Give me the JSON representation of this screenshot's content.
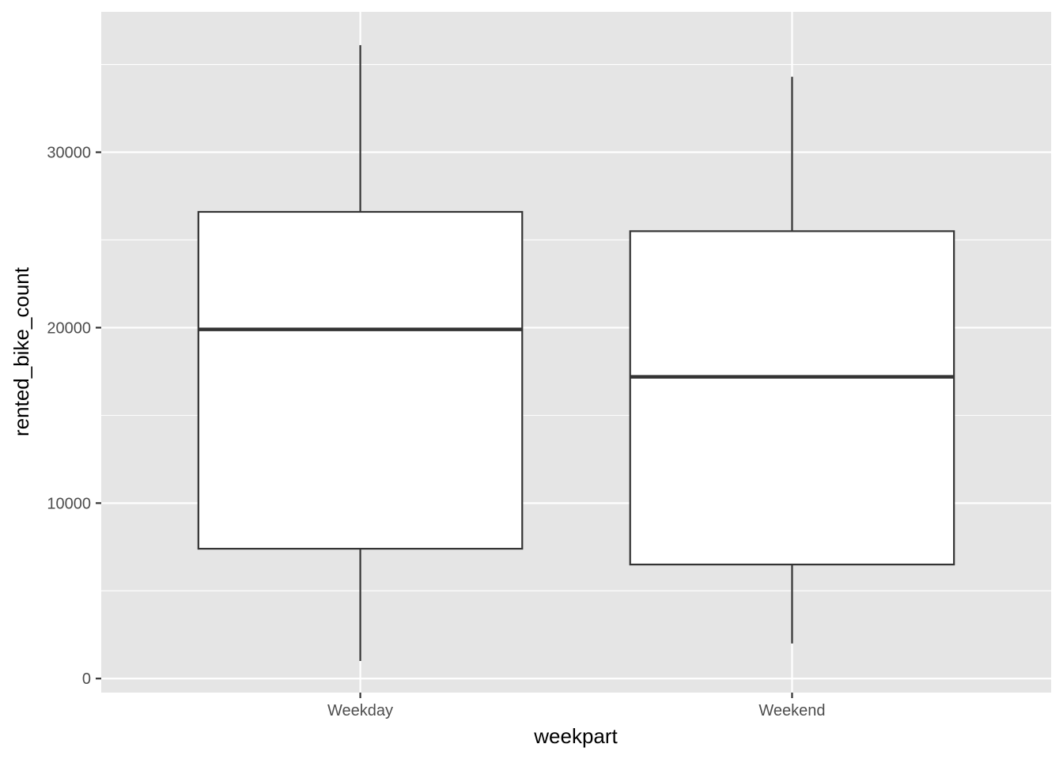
{
  "chart_data": {
    "type": "boxplot",
    "xlabel": "weekpart",
    "ylabel": "rented_bike_count",
    "categories": [
      "Weekday",
      "Weekend"
    ],
    "boxes": [
      {
        "category": "Weekday",
        "whisker_low": 1000,
        "q1": 7400,
        "median": 19900,
        "q3": 26600,
        "whisker_high": 36100
      },
      {
        "category": "Weekend",
        "whisker_low": 2000,
        "q1": 6500,
        "median": 17200,
        "q3": 25500,
        "whisker_high": 34300
      }
    ],
    "ylim": [
      -800,
      38000
    ],
    "y_major_ticks": [
      0,
      10000,
      20000,
      30000
    ],
    "y_tick_labels": [
      "0",
      "10000",
      "20000",
      "30000"
    ],
    "y_minor_gridlines": [
      5000,
      15000,
      25000,
      35000
    ],
    "grid": true,
    "legend": "none",
    "colors": {
      "panel_background": "#e5e5e5",
      "gridline": "#ffffff",
      "box_fill": "#ffffff",
      "box_stroke": "#333333",
      "tick_mark": "#333333"
    }
  }
}
